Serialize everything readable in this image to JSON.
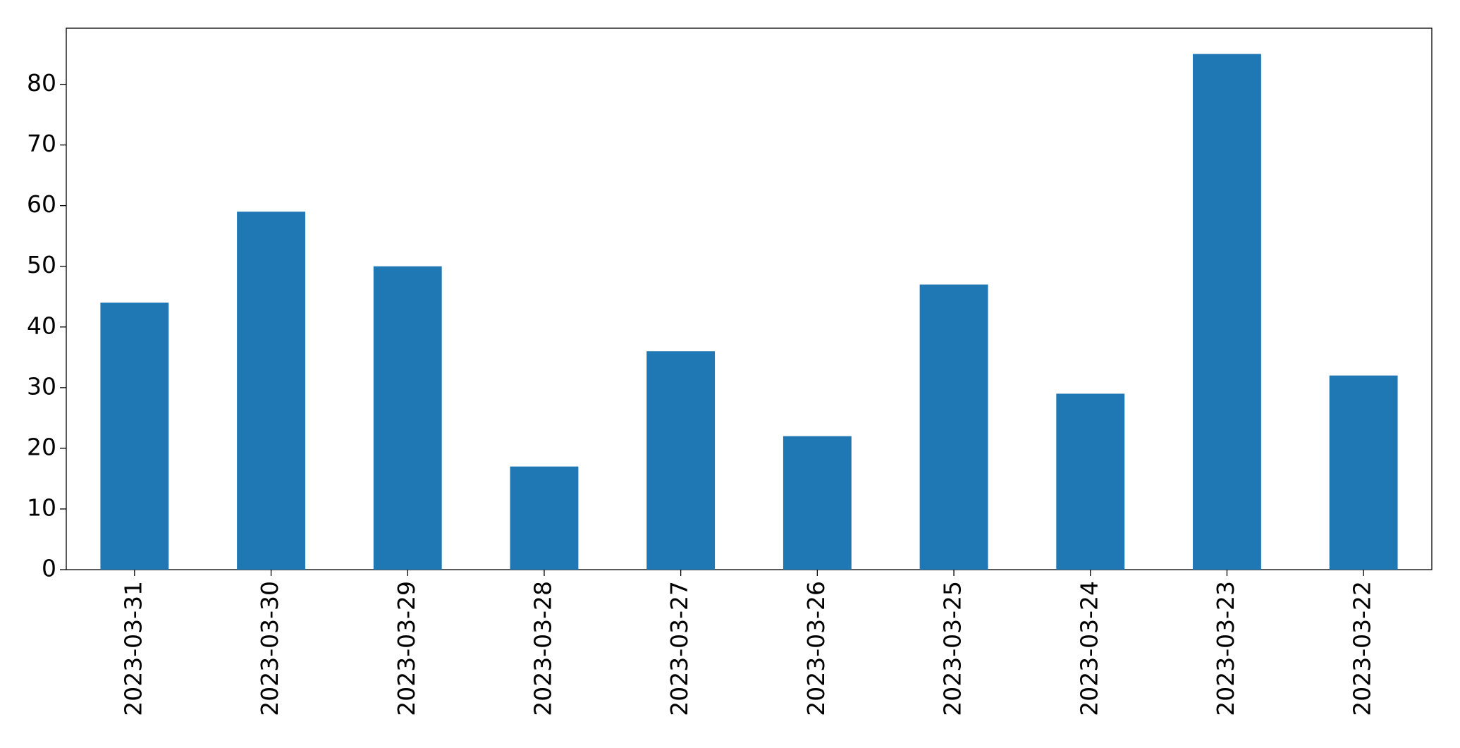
{
  "chart_data": {
    "type": "bar",
    "categories": [
      "2023-03-31",
      "2023-03-30",
      "2023-03-29",
      "2023-03-28",
      "2023-03-27",
      "2023-03-26",
      "2023-03-25",
      "2023-03-24",
      "2023-03-23",
      "2023-03-22"
    ],
    "values": [
      44,
      59,
      50,
      17,
      36,
      22,
      47,
      29,
      85,
      32
    ],
    "color": "#1f77b4",
    "ylim": [
      0,
      89.25
    ],
    "yticks": [
      0,
      10,
      20,
      30,
      40,
      50,
      60,
      70,
      80
    ],
    "grid": false
  }
}
